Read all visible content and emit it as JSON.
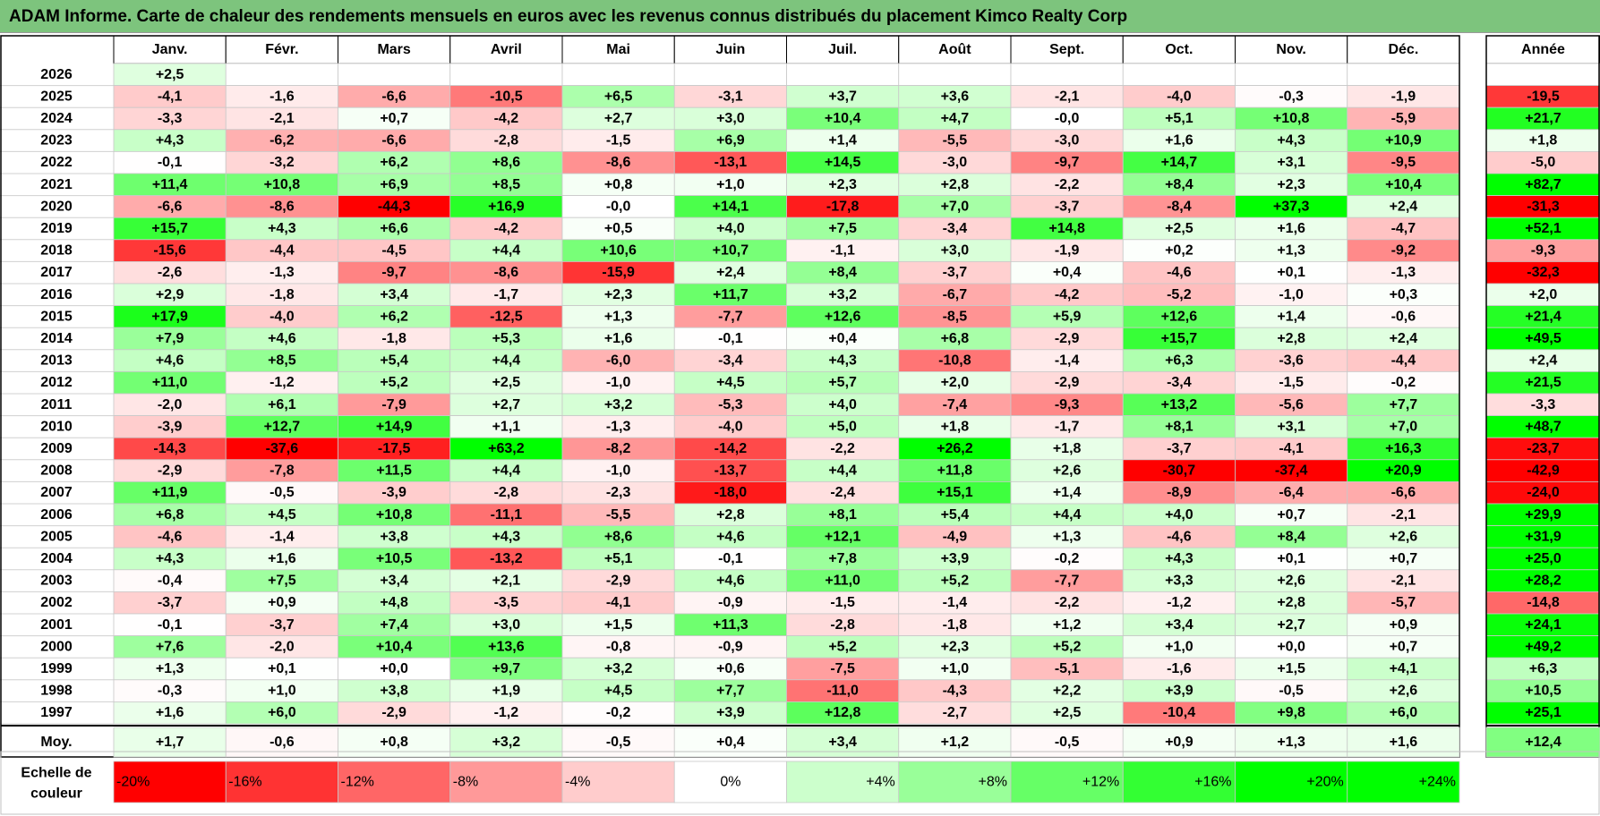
{
  "title": "ADAM Informe. Carte de chaleur des rendements mensuels en euros avec les revenus connus distribués du placement Kimco Realty Corp",
  "months": [
    "Janv.",
    "Févr.",
    "Mars",
    "Avril",
    "Mai",
    "Juin",
    "Juil.",
    "Août",
    "Sept.",
    "Oct.",
    "Nov.",
    "Déc."
  ],
  "year_col_label": "Année",
  "avg_label": "Moy.",
  "scale_label": [
    "Echelle de",
    "couleur"
  ],
  "colors": {
    "negative": "#ff0000",
    "positive": "#00ff00",
    "neutral": "#ffffff",
    "title_bar": "#7dc47d"
  },
  "chart_data": {
    "type": "heatmap",
    "rows": [
      {
        "year": "2026",
        "values": [
          "+2,5",
          null,
          null,
          null,
          null,
          null,
          null,
          null,
          null,
          null,
          null,
          null
        ],
        "annual": ""
      },
      {
        "year": "2025",
        "values": [
          "-4,1",
          "-1,6",
          "-6,6",
          "-10,5",
          "+6,5",
          "-3,1",
          "+3,7",
          "+3,6",
          "-2,1",
          "-4,0",
          "-0,3",
          "-1,9"
        ],
        "annual": "-19,5"
      },
      {
        "year": "2024",
        "values": [
          "-3,3",
          "-2,1",
          "+0,7",
          "-4,2",
          "+2,7",
          "+3,0",
          "+10,4",
          "+4,7",
          "-0,0",
          "+5,1",
          "+10,8",
          "-5,9"
        ],
        "annual": "+21,7"
      },
      {
        "year": "2023",
        "values": [
          "+4,3",
          "-6,2",
          "-6,6",
          "-2,8",
          "-1,5",
          "+6,9",
          "+1,4",
          "-5,5",
          "-3,0",
          "+1,6",
          "+4,3",
          "+10,9"
        ],
        "annual": "+1,8"
      },
      {
        "year": "2022",
        "values": [
          "-0,1",
          "-3,2",
          "+6,2",
          "+8,6",
          "-8,6",
          "-13,1",
          "+14,5",
          "-3,0",
          "-9,7",
          "+14,7",
          "+3,1",
          "-9,5"
        ],
        "annual": "-5,0"
      },
      {
        "year": "2021",
        "values": [
          "+11,4",
          "+10,8",
          "+6,9",
          "+8,5",
          "+0,8",
          "+1,0",
          "+2,3",
          "+2,8",
          "-2,2",
          "+8,4",
          "+2,3",
          "+10,4"
        ],
        "annual": "+82,7"
      },
      {
        "year": "2020",
        "values": [
          "-6,6",
          "-8,6",
          "-44,3",
          "+16,9",
          "-0,0",
          "+14,1",
          "-17,8",
          "+7,0",
          "-3,7",
          "-8,4",
          "+37,3",
          "+2,4"
        ],
        "annual": "-31,3"
      },
      {
        "year": "2019",
        "values": [
          "+15,7",
          "+4,3",
          "+6,6",
          "-4,2",
          "+0,5",
          "+4,0",
          "+7,5",
          "-3,4",
          "+14,8",
          "+2,5",
          "+1,6",
          "-4,7"
        ],
        "annual": "+52,1"
      },
      {
        "year": "2018",
        "values": [
          "-15,6",
          "-4,4",
          "-4,5",
          "+4,4",
          "+10,6",
          "+10,7",
          "-1,1",
          "+3,0",
          "-1,9",
          "+0,2",
          "+1,3",
          "-9,2"
        ],
        "annual": "-9,3"
      },
      {
        "year": "2017",
        "values": [
          "-2,6",
          "-1,3",
          "-9,7",
          "-8,6",
          "-15,9",
          "+2,4",
          "+8,4",
          "-3,7",
          "+0,4",
          "-4,6",
          "+0,1",
          "-1,3"
        ],
        "annual": "-32,3"
      },
      {
        "year": "2016",
        "values": [
          "+2,9",
          "-1,8",
          "+3,4",
          "-1,7",
          "+2,3",
          "+11,7",
          "+3,2",
          "-6,7",
          "-4,2",
          "-5,2",
          "-1,0",
          "+0,3"
        ],
        "annual": "+2,0"
      },
      {
        "year": "2015",
        "values": [
          "+17,9",
          "-4,0",
          "+6,2",
          "-12,5",
          "+1,3",
          "-7,7",
          "+12,6",
          "-8,5",
          "+5,9",
          "+12,6",
          "+1,4",
          "-0,6"
        ],
        "annual": "+21,4"
      },
      {
        "year": "2014",
        "values": [
          "+7,9",
          "+4,6",
          "-1,8",
          "+5,3",
          "+1,6",
          "-0,1",
          "+0,4",
          "+6,8",
          "-2,9",
          "+15,7",
          "+2,8",
          "+2,4"
        ],
        "annual": "+49,5"
      },
      {
        "year": "2013",
        "values": [
          "+4,6",
          "+8,5",
          "+5,4",
          "+4,4",
          "-6,0",
          "-3,4",
          "+4,3",
          "-10,8",
          "-1,4",
          "+6,3",
          "-3,6",
          "-4,4"
        ],
        "annual": "+2,4"
      },
      {
        "year": "2012",
        "values": [
          "+11,0",
          "-1,2",
          "+5,2",
          "+2,5",
          "-1,0",
          "+4,5",
          "+5,7",
          "+2,0",
          "-2,9",
          "-3,4",
          "-1,5",
          "-0,2"
        ],
        "annual": "+21,5"
      },
      {
        "year": "2011",
        "values": [
          "-2,0",
          "+6,1",
          "-7,9",
          "+2,7",
          "+3,2",
          "-5,3",
          "+4,0",
          "-7,4",
          "-9,3",
          "+13,2",
          "-5,6",
          "+7,7"
        ],
        "annual": "-3,3"
      },
      {
        "year": "2010",
        "values": [
          "-3,9",
          "+12,7",
          "+14,9",
          "+1,1",
          "-1,3",
          "-4,0",
          "+5,0",
          "+1,8",
          "-1,7",
          "+8,1",
          "+3,1",
          "+7,0"
        ],
        "annual": "+48,7"
      },
      {
        "year": "2009",
        "values": [
          "-14,3",
          "-37,6",
          "-17,5",
          "+63,2",
          "-8,2",
          "-14,2",
          "-2,2",
          "+26,2",
          "+1,8",
          "-3,7",
          "-4,1",
          "+16,3"
        ],
        "annual": "-23,7"
      },
      {
        "year": "2008",
        "values": [
          "-2,9",
          "-7,8",
          "+11,5",
          "+4,4",
          "-1,0",
          "-13,7",
          "+4,4",
          "+11,8",
          "+2,6",
          "-30,7",
          "-37,4",
          "+20,9"
        ],
        "annual": "-42,9"
      },
      {
        "year": "2007",
        "values": [
          "+11,9",
          "-0,5",
          "-3,9",
          "-2,8",
          "-2,3",
          "-18,0",
          "-2,4",
          "+15,1",
          "+1,4",
          "-8,9",
          "-6,4",
          "-6,6"
        ],
        "annual": "-24,0"
      },
      {
        "year": "2006",
        "values": [
          "+6,8",
          "+4,5",
          "+10,8",
          "-11,1",
          "-5,5",
          "+2,8",
          "+8,1",
          "+5,4",
          "+4,4",
          "+4,0",
          "+0,7",
          "-2,1"
        ],
        "annual": "+29,9"
      },
      {
        "year": "2005",
        "values": [
          "-4,6",
          "-1,4",
          "+3,8",
          "+4,3",
          "+8,6",
          "+4,6",
          "+12,1",
          "-4,9",
          "+1,3",
          "-4,6",
          "+8,4",
          "+2,6"
        ],
        "annual": "+31,9"
      },
      {
        "year": "2004",
        "values": [
          "+4,3",
          "+1,6",
          "+10,5",
          "-13,2",
          "+5,1",
          "-0,1",
          "+7,8",
          "+3,9",
          "-0,2",
          "+4,3",
          "+0,1",
          "+0,7"
        ],
        "annual": "+25,0"
      },
      {
        "year": "2003",
        "values": [
          "-0,4",
          "+7,5",
          "+3,4",
          "+2,1",
          "-2,9",
          "+4,6",
          "+11,0",
          "+5,2",
          "-7,7",
          "+3,3",
          "+2,6",
          "-2,1"
        ],
        "annual": "+28,2"
      },
      {
        "year": "2002",
        "values": [
          "-3,7",
          "+0,9",
          "+4,8",
          "-3,5",
          "-4,1",
          "-0,9",
          "-1,5",
          "-1,4",
          "-2,2",
          "-1,2",
          "+2,8",
          "-5,7"
        ],
        "annual": "-14,8"
      },
      {
        "year": "2001",
        "values": [
          "-0,1",
          "-3,7",
          "+7,4",
          "+3,0",
          "+1,5",
          "+11,3",
          "-2,8",
          "-1,8",
          "+1,2",
          "+3,4",
          "+2,7",
          "+0,9"
        ],
        "annual": "+24,1"
      },
      {
        "year": "2000",
        "values": [
          "+7,6",
          "-2,0",
          "+10,4",
          "+13,6",
          "-0,8",
          "-0,9",
          "+5,2",
          "+2,3",
          "+5,2",
          "+1,0",
          "+0,0",
          "+0,7"
        ],
        "annual": "+49,2"
      },
      {
        "year": "1999",
        "values": [
          "+1,3",
          "+0,1",
          "+0,0",
          "+9,7",
          "+3,2",
          "+0,6",
          "-7,5",
          "+1,0",
          "-5,1",
          "-1,6",
          "+1,5",
          "+4,1"
        ],
        "annual": "+6,3"
      },
      {
        "year": "1998",
        "values": [
          "-0,3",
          "+1,0",
          "+3,8",
          "+1,9",
          "+4,5",
          "+7,7",
          "-11,0",
          "-4,3",
          "+2,2",
          "+3,9",
          "-0,5",
          "+2,6"
        ],
        "annual": "+10,5"
      },
      {
        "year": "1997",
        "values": [
          "+1,6",
          "+6,0",
          "-2,9",
          "-1,2",
          "-0,2",
          "+3,9",
          "+12,8",
          "-2,7",
          "+2,5",
          "-10,4",
          "+9,8",
          "+6,0"
        ],
        "annual": "+25,1"
      }
    ],
    "average": {
      "values": [
        "+1,7",
        "-0,6",
        "+0,8",
        "+3,2",
        "-0,5",
        "+0,4",
        "+3,4",
        "+1,2",
        "-0,5",
        "+0,9",
        "+1,3",
        "+1,6"
      ],
      "annual": "+12,4"
    },
    "scale": {
      "labels": [
        "-20%",
        "-16%",
        "-12%",
        "-8%",
        "-4%",
        "0%",
        "+4%",
        "+8%",
        "+12%",
        "+16%",
        "+20%",
        "+24%"
      ],
      "values": [
        -20,
        -16,
        -12,
        -8,
        -4,
        0,
        4,
        8,
        12,
        16,
        20,
        24
      ]
    }
  }
}
